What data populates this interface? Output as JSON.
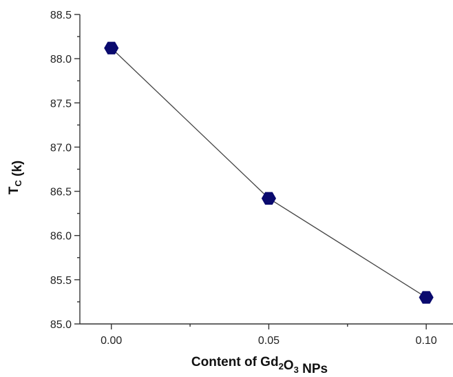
{
  "chart_data": {
    "type": "line",
    "title": "",
    "xlabel": {
      "parts": [
        {
          "text": "Content of Gd",
          "sub": false
        },
        {
          "text": "2",
          "sub": true
        },
        {
          "text": "O",
          "sub": false
        },
        {
          "text": "3",
          "sub": true
        },
        {
          "text": " NPs",
          "sub": false
        }
      ]
    },
    "ylabel": {
      "parts": [
        {
          "text": "T",
          "sub": false
        },
        {
          "text": "C",
          "sub": true
        },
        {
          "text": " (k)",
          "sub": false
        }
      ]
    },
    "x_ticks": [
      "0.00",
      "0.05",
      "0.10"
    ],
    "x_tick_values": [
      0.0,
      0.05,
      0.1
    ],
    "y_ticks": [
      "85.0",
      "85.5",
      "86.0",
      "86.5",
      "87.0",
      "87.5",
      "88.0",
      "88.5"
    ],
    "y_tick_values": [
      85.0,
      85.5,
      86.0,
      86.5,
      87.0,
      87.5,
      88.0,
      88.5
    ],
    "xlim": [
      -0.01,
      0.1085
    ],
    "ylim": [
      85.0,
      88.5
    ],
    "grid": false,
    "series": [
      {
        "x": [
          0.0,
          0.05,
          0.1
        ],
        "y": [
          88.12,
          86.42,
          85.3
        ],
        "marker": "hexagon",
        "marker_color": "#0a0a6e",
        "line_color": "#444444"
      }
    ]
  }
}
